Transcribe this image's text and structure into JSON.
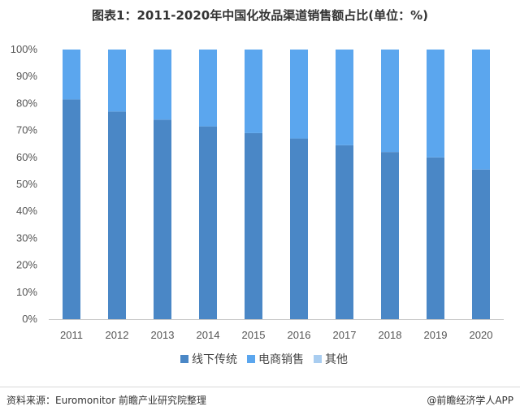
{
  "chart_data": {
    "type": "bar",
    "stacked": true,
    "title": "图表1：2011-2020年中国化妆品渠道销售额占比(单位：%)",
    "categories": [
      "2011",
      "2012",
      "2013",
      "2014",
      "2015",
      "2016",
      "2017",
      "2018",
      "2019",
      "2020"
    ],
    "series": [
      {
        "name": "线下传统",
        "color": "#4a87c6",
        "values": [
          81.5,
          77.0,
          74.0,
          71.5,
          69.0,
          67.0,
          64.5,
          62.0,
          60.0,
          55.5
        ]
      },
      {
        "name": "电商销售",
        "color": "#5ba6ee",
        "values": [
          18.5,
          23.0,
          26.0,
          28.5,
          31.0,
          33.0,
          35.5,
          38.0,
          40.0,
          44.5
        ]
      },
      {
        "name": "其他",
        "color": "#a9cdf0",
        "values": [
          0,
          0,
          0,
          0,
          0,
          0,
          0,
          0,
          0,
          0
        ]
      }
    ],
    "yticks": [
      "0%",
      "10%",
      "20%",
      "30%",
      "40%",
      "50%",
      "60%",
      "70%",
      "80%",
      "90%",
      "100%"
    ],
    "ylim": [
      0,
      100
    ],
    "grid": false,
    "legend": "bottom"
  },
  "footer": {
    "source": "资料来源：Euromonitor 前瞻产业研究院整理",
    "brand": "@前瞻经济学人APP"
  }
}
